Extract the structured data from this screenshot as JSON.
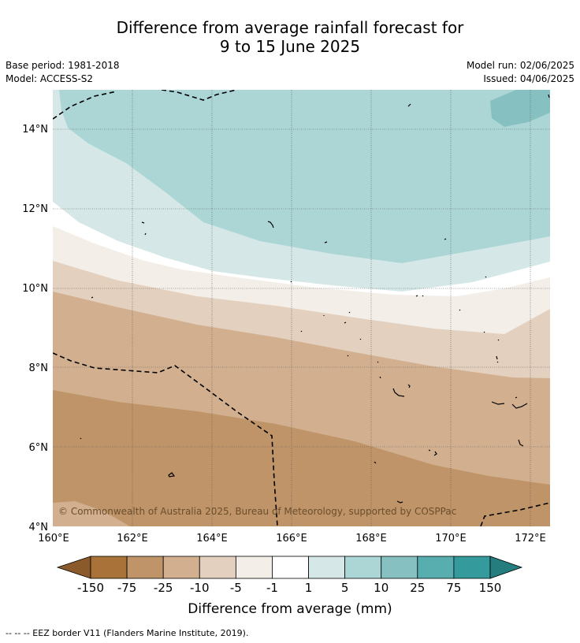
{
  "title": {
    "line1": "Difference from average rainfall forecast for",
    "line2": "9 to 15 June 2025"
  },
  "info": {
    "base_period": "Base period: 1981-2018",
    "model": "Model: ACCESS-S2",
    "model_run": "Model run: 02/06/2025",
    "issued": "Issued: 04/06/2025"
  },
  "map": {
    "lat_labels": [
      "14°N",
      "12°N",
      "10°N",
      "8°N",
      "6°N",
      "4°N"
    ],
    "lon_labels": [
      "160°E",
      "162°E",
      "164°E",
      "166°E",
      "168°E",
      "170°E",
      "172°E"
    ],
    "copyright": "© Commonwealth of Australia 2025, Bureau of Meteorology, supported by COSPPac"
  },
  "colorbar": {
    "ticks": [
      "-150",
      "-75",
      "-25",
      "-10",
      "-5",
      "-1",
      "1",
      "5",
      "10",
      "25",
      "75",
      "150"
    ],
    "colors": [
      "#8b5a2b",
      "#a87238",
      "#bf9468",
      "#d2b08f",
      "#e3d0be",
      "#f3eee8",
      "#ffffff",
      "#d5e8e7",
      "#acd6d6",
      "#86c0c1",
      "#58adae",
      "#349a9b",
      "#257d7e"
    ],
    "label": "Difference from average (mm)"
  },
  "footnote": "--  --  -- EEZ border V11 (Flanders Marine Institute, 2019)."
}
